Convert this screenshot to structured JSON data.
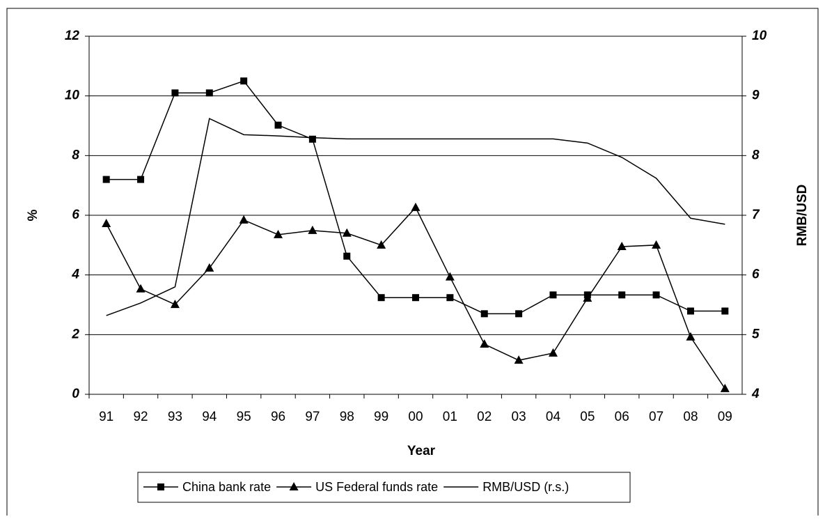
{
  "chart_data": {
    "type": "line",
    "x_label": "Year",
    "y_label": "%",
    "y2_label": "RMB/USD",
    "categories": [
      "91",
      "92",
      "93",
      "94",
      "95",
      "96",
      "97",
      "98",
      "99",
      "00",
      "01",
      "02",
      "03",
      "04",
      "05",
      "06",
      "07",
      "08",
      "09"
    ],
    "series": [
      {
        "name": "China bank rate",
        "color": "#000000",
        "marker": "square",
        "values": [
          7.2,
          7.2,
          10.1,
          10.1,
          10.5,
          9.02,
          8.55,
          4.63,
          3.24,
          3.24,
          3.24,
          2.7,
          2.7,
          3.33,
          3.33,
          3.33,
          3.33,
          2.79,
          2.79
        ]
      },
      {
        "name": "US Federal funds rate",
        "color": "#000000",
        "marker": "triangle",
        "values": [
          5.72,
          3.53,
          3.01,
          4.23,
          5.84,
          5.35,
          5.49,
          5.4,
          5.0,
          6.26,
          3.93,
          1.68,
          1.14,
          1.38,
          3.22,
          4.95,
          5.0,
          1.92,
          0.19
        ]
      },
      {
        "name": "RMB/USD (r.s.)",
        "color": "#000000",
        "marker": "none",
        "axis": "y2",
        "values": [
          5.32,
          5.53,
          5.8,
          8.62,
          8.35,
          8.33,
          8.3,
          8.28,
          8.28,
          8.28,
          8.28,
          8.28,
          8.28,
          8.28,
          8.21,
          7.97,
          7.62,
          6.95,
          6.85
        ]
      }
    ],
    "ylim": [
      0,
      12
    ],
    "yticks": [
      0,
      2,
      4,
      6,
      8,
      10,
      12
    ],
    "y2lim": [
      4,
      10
    ],
    "y2ticks": [
      4,
      5,
      6,
      7,
      8,
      9,
      10
    ],
    "grid": true,
    "legend": "bottom"
  }
}
